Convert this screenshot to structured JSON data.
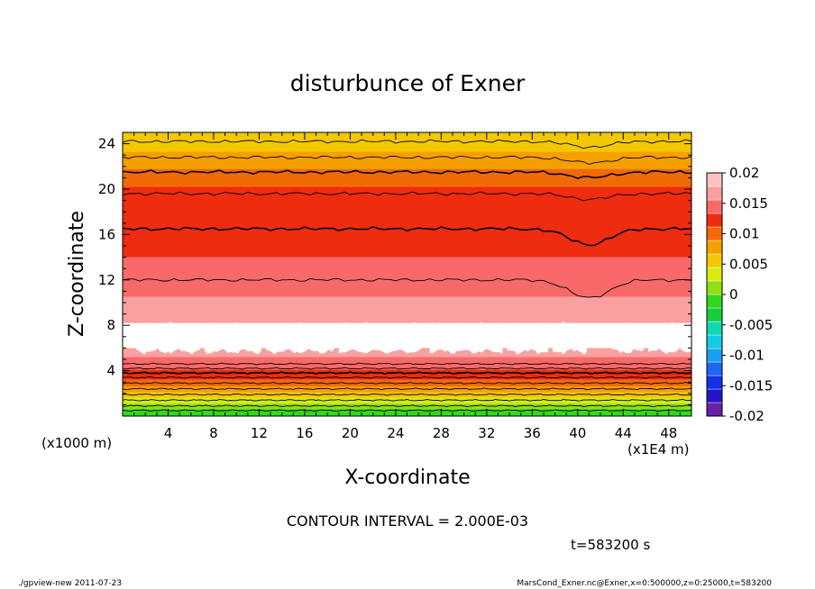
{
  "chart_data": {
    "type": "heatmap",
    "title": "disturbunce of Exner",
    "xlabel": "X-coordinate",
    "ylabel": "Z-coordinate",
    "x_unit_label": "(x1E4 m)",
    "y_unit_label": "(x1000 m)",
    "xlim": [
      0,
      50
    ],
    "ylim": [
      0,
      25
    ],
    "x_ticks": [
      "4",
      "8",
      "12",
      "16",
      "20",
      "24",
      "28",
      "32",
      "36",
      "40",
      "44",
      "48"
    ],
    "y_ticks": [
      "4",
      "8",
      "12",
      "16",
      "20",
      "24"
    ],
    "contour_interval_text": "CONTOUR INTERVAL = 2.000E-03",
    "time_text": "t=583200 s",
    "colorbar": {
      "tick_labels": [
        "0.02",
        "0.015",
        "0.01",
        "0.005",
        "0",
        "-0.005",
        "-0.01",
        "-0.015",
        "-0.02"
      ],
      "range": [
        -0.02,
        0.02
      ],
      "levels": [
        {
          "from": -0.02,
          "to": -0.0175,
          "color": "#6a1fa8"
        },
        {
          "from": -0.0175,
          "to": -0.015,
          "color": "#2416c6"
        },
        {
          "from": -0.015,
          "to": -0.0125,
          "color": "#1430e8"
        },
        {
          "from": -0.0125,
          "to": -0.01,
          "color": "#1f66f0"
        },
        {
          "from": -0.01,
          "to": -0.0075,
          "color": "#19a0f0"
        },
        {
          "from": -0.0075,
          "to": -0.005,
          "color": "#12cde0"
        },
        {
          "from": -0.005,
          "to": -0.0025,
          "color": "#10d8b0"
        },
        {
          "from": -0.0025,
          "to": 0.0,
          "color": "#18cc40"
        },
        {
          "from": 0.0,
          "to": 0.0025,
          "color": "#30d820"
        },
        {
          "from": 0.0025,
          "to": 0.005,
          "color": "#8ee010"
        },
        {
          "from": 0.005,
          "to": 0.0075,
          "color": "#d8ec10"
        },
        {
          "from": 0.0075,
          "to": 0.01,
          "color": "#f4c800"
        },
        {
          "from": 0.01,
          "to": 0.0125,
          "color": "#f6a000"
        },
        {
          "from": 0.0125,
          "to": 0.015,
          "color": "#f26a08"
        },
        {
          "from": 0.015,
          "to": 0.0175,
          "color": "#ee2c10"
        },
        {
          "from": 0.0175,
          "to": 0.02,
          "color": "#f86a6a"
        },
        {
          "from": 0.02,
          "to": 0.0225,
          "color": "#fba0a0"
        },
        {
          "from": 0.0225,
          "to": 0.025,
          "color": "#fcc2c2"
        }
      ]
    },
    "field_bands": [
      {
        "z": [
          0.0,
          0.6
        ],
        "color": "#30d820"
      },
      {
        "z": [
          0.6,
          1.1
        ],
        "color": "#8ee010"
      },
      {
        "z": [
          1.1,
          1.6
        ],
        "color": "#d8ec10"
      },
      {
        "z": [
          1.6,
          2.1
        ],
        "color": "#f4c800"
      },
      {
        "z": [
          2.1,
          2.6
        ],
        "color": "#f6a000"
      },
      {
        "z": [
          2.6,
          3.2
        ],
        "color": "#f26a08"
      },
      {
        "z": [
          3.2,
          4.1
        ],
        "color": "#ee2c10"
      },
      {
        "z": [
          4.1,
          5.2
        ],
        "color": "#f86a6a"
      },
      {
        "z": [
          5.2,
          6.0
        ],
        "color": "#fba0a0"
      },
      {
        "z": [
          6.0,
          8.2
        ],
        "color": "#ffffff"
      },
      {
        "z": [
          8.2,
          10.5
        ],
        "color": "#fba0a0"
      },
      {
        "z": [
          10.5,
          14.0
        ],
        "color": "#f86a6a"
      },
      {
        "z": [
          14.0,
          20.2
        ],
        "color": "#ee2c10"
      },
      {
        "z": [
          20.2,
          21.8
        ],
        "color": "#f26a08"
      },
      {
        "z": [
          21.8,
          23.3
        ],
        "color": "#f6a000"
      },
      {
        "z": [
          23.3,
          25.0
        ],
        "color": "#f4c800"
      }
    ],
    "white_blobs_x": [
      [
        1.2,
        6.8
      ],
      [
        7.2,
        12.2
      ],
      [
        12.6,
        18.6
      ],
      [
        19.0,
        26.2
      ],
      [
        27.0,
        33.4
      ],
      [
        33.8,
        37.4
      ],
      [
        37.8,
        40.8
      ],
      [
        43.0,
        45.8
      ],
      [
        46.2,
        50.0
      ]
    ],
    "contour_levels_z": [
      12.0,
      16.5,
      19.6,
      21.5,
      22.8,
      24.2
    ],
    "low_contour_levels_z": [
      0.5,
      0.9,
      1.4,
      1.9,
      2.4,
      2.9,
      3.4,
      3.8,
      4.2,
      4.6
    ],
    "trough_center_x": 41.0
  },
  "footer": {
    "left": "./gpview-new   2011-07-23",
    "right": "MarsCond_Exner.nc@Exner,x=0:500000,z=0:25000,t=583200"
  }
}
